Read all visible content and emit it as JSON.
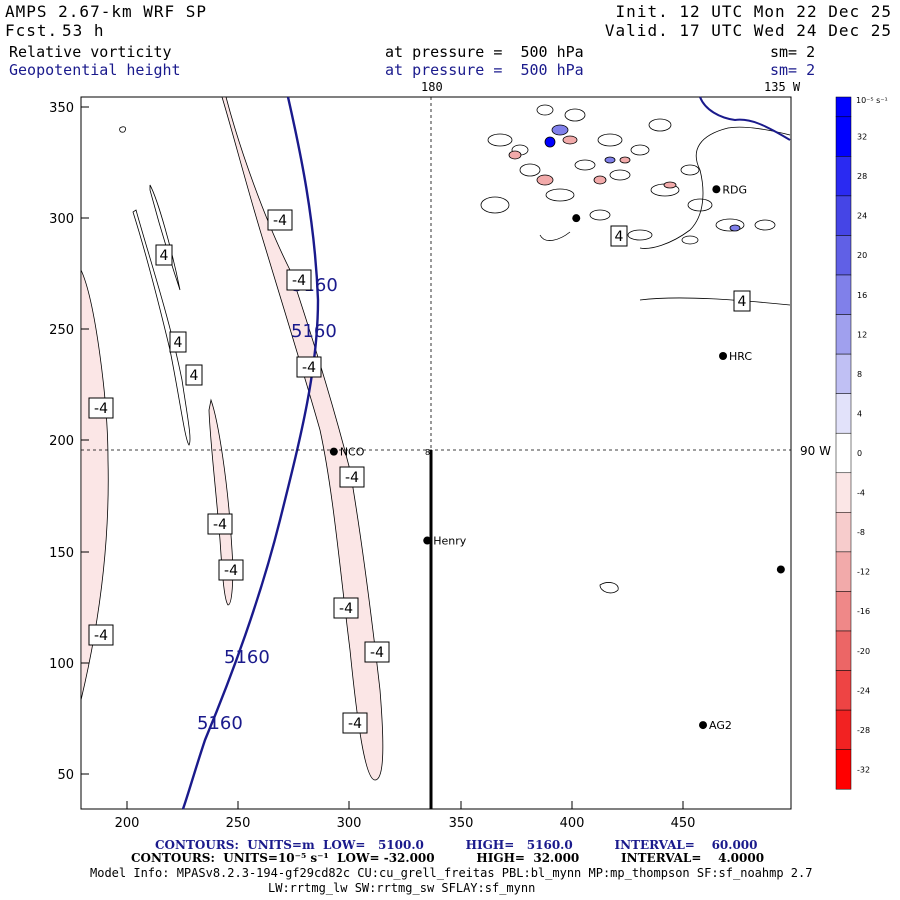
{
  "header": {
    "model_title": "AMPS 2.67-km WRF SP",
    "fcst_label": "Fcst.",
    "fcst_value": "53 h",
    "init": "Init. 12 UTC Mon 22 Dec 25",
    "valid": "Valid. 17 UTC Wed 24 Dec 25",
    "field1_name": "Relative vorticity",
    "field1_level": "at pressure =  500 hPa",
    "field1_smooth": "sm= 2",
    "field2_name": "Geopotential height",
    "field2_level": "at pressure =  500 hPa",
    "field2_smooth": "sm= 2",
    "lon_top_label": "180",
    "lon_top_right_label": "135 W",
    "lon_right_label": "90 W"
  },
  "axes": {
    "x_ticks": [
      "200",
      "250",
      "300",
      "350",
      "400",
      "450"
    ],
    "y_ticks": [
      "350",
      "300",
      "250",
      "200",
      "150",
      "100",
      "50"
    ]
  },
  "contour_labels": {
    "height": [
      "5160",
      "5160",
      "5160",
      "5160"
    ],
    "vorticity": [
      "-4",
      "-4",
      "-4",
      "-4",
      "-4",
      "-4",
      "-4",
      "-4",
      "-4",
      "-4",
      "-4",
      "4",
      "4",
      "4",
      "4",
      "4"
    ]
  },
  "stations": [
    {
      "name": "NCO",
      "x": 293,
      "y": 195
    },
    {
      "name": "Henry",
      "x": 335,
      "y": 155
    },
    {
      "name": "HRC",
      "x": 468,
      "y": 238
    },
    {
      "name": "RDG",
      "x": 465,
      "y": 313
    },
    {
      "name": "AG2",
      "x": 459,
      "y": 72
    },
    {
      "name": "",
      "x": 402,
      "y": 300
    },
    {
      "name": "",
      "x": 494,
      "y": 142
    }
  ],
  "colorbar": {
    "unit_label": "10⁻⁵ s⁻¹",
    "levels": [
      "32",
      "28",
      "24",
      "20",
      "16",
      "12",
      "8",
      "4",
      "0",
      "-4",
      "-8",
      "-12",
      "-16",
      "-20",
      "-24",
      "-28",
      "-32"
    ],
    "colors": [
      "#0000ff",
      "#2a2af2",
      "#4545e6",
      "#6060e6",
      "#8080ea",
      "#a0a0ee",
      "#c0c0f4",
      "#e2e2fa",
      "#ffffff",
      "#fbe6e6",
      "#f7cccc",
      "#f2aaaa",
      "#ef8888",
      "#ec6666",
      "#ee4444",
      "#f22222",
      "#ff0000"
    ]
  },
  "footer": {
    "height_contours": "CONTOURS:  UNITS=m  LOW=   5100.0          HIGH=   5160.0          INTERVAL=    60.000",
    "vort_contours": "CONTOURS:  UNITS=10⁻⁵ s⁻¹  LOW= -32.000          HIGH=  32.000          INTERVAL=    4.0000",
    "model_info": "Model Info: MPASv8.2.3-194-gf29cd82c CU:cu_grell_freitas PBL:bl_mynn MP:mp_thompson SF:sf_noahmp 2.7",
    "model_info2": "LW:rrtmg_lw SW:rrtmg_sw SFLAY:sf_mynn"
  }
}
